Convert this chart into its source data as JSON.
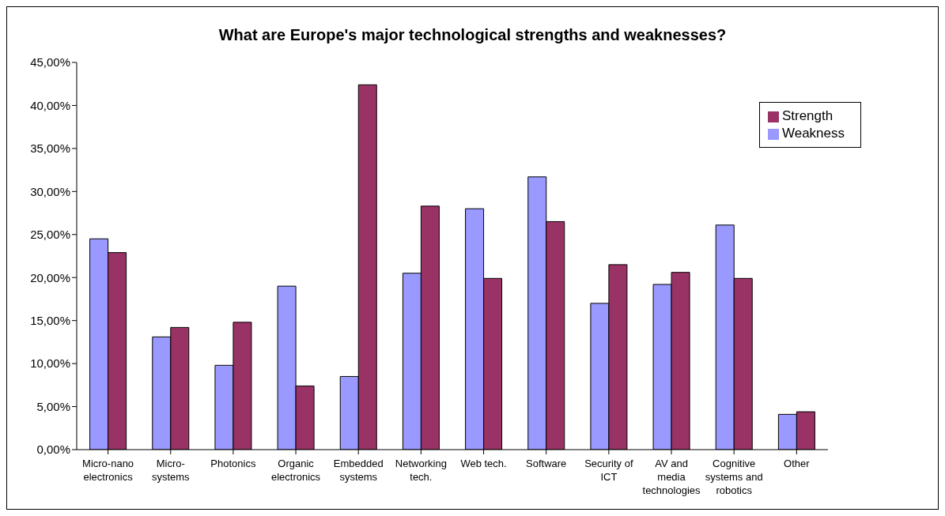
{
  "chart_data": {
    "type": "bar",
    "title": "What are Europe's major technological strengths and weaknesses?",
    "categories": [
      "Micro-nano electronics",
      "Micro-systems",
      "Photonics",
      "Organic electronics",
      "Embedded systems",
      "Networking tech.",
      "Web tech.",
      "Software",
      "Security of ICT",
      "AV and media technologies",
      "Cognitive systems and robotics",
      "Other"
    ],
    "series": [
      {
        "name": "Weakness",
        "color": "#9999ff",
        "values": [
          24.5,
          13.1,
          9.8,
          19.0,
          8.5,
          20.5,
          28.0,
          31.7,
          17.0,
          19.2,
          26.1,
          4.1
        ]
      },
      {
        "name": "Strength",
        "color": "#993366",
        "values": [
          22.9,
          14.2,
          14.8,
          7.4,
          42.4,
          28.3,
          19.9,
          26.5,
          21.5,
          20.6,
          19.9,
          4.4
        ]
      }
    ],
    "ylim": [
      0,
      45
    ],
    "yticks": [
      {
        "value": 0,
        "label": "0,00%"
      },
      {
        "value": 5,
        "label": "5,00%"
      },
      {
        "value": 10,
        "label": "10,00%"
      },
      {
        "value": 15,
        "label": "15,00%"
      },
      {
        "value": 20,
        "label": "20,00%"
      },
      {
        "value": 25,
        "label": "25,00%"
      },
      {
        "value": 30,
        "label": "30,00%"
      },
      {
        "value": 35,
        "label": "35,00%"
      },
      {
        "value": 40,
        "label": "40,00%"
      },
      {
        "value": 45,
        "label": "45,00%"
      }
    ],
    "grid": false,
    "legend": "top right"
  }
}
